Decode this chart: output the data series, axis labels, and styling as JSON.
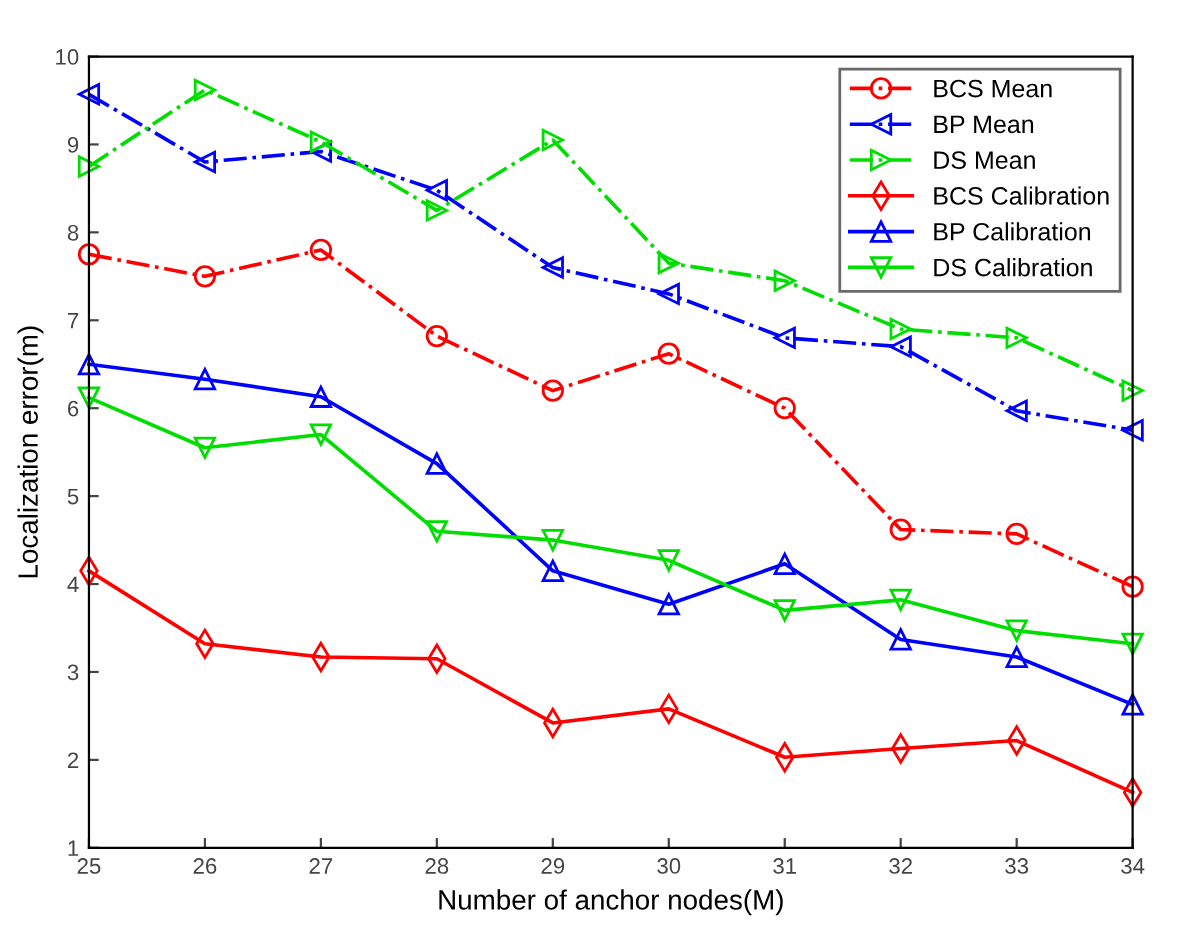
{
  "chart_data": {
    "type": "line",
    "xlabel": "Number of anchor nodes(M)",
    "ylabel": "Localization error(m)",
    "x": [
      25,
      26,
      27,
      28,
      29,
      30,
      31,
      32,
      33,
      34
    ],
    "xlim": [
      25,
      34
    ],
    "xticks": [
      25,
      26,
      27,
      28,
      29,
      30,
      31,
      32,
      33,
      34
    ],
    "ylim": [
      1,
      10
    ],
    "yticks": [
      1,
      2,
      3,
      4,
      5,
      6,
      7,
      8,
      9,
      10
    ],
    "grid": false,
    "legend": "top right",
    "series": [
      {
        "name": "BCS Mean",
        "color": "#ff0000",
        "marker": "circle",
        "line_style": "dashdot",
        "values": [
          7.75,
          7.5,
          7.8,
          6.82,
          6.2,
          6.62,
          6.0,
          4.62,
          4.57,
          3.97
        ]
      },
      {
        "name": "BP Mean",
        "color": "#0000ff",
        "marker": "triangle_left",
        "line_style": "dashdot",
        "values": [
          9.57,
          8.8,
          8.92,
          8.48,
          7.6,
          7.3,
          6.8,
          6.7,
          5.97,
          5.75
        ]
      },
      {
        "name": "DS Mean",
        "color": "#00dd00",
        "marker": "triangle_right",
        "line_style": "dashdot",
        "values": [
          8.75,
          9.62,
          9.03,
          8.25,
          9.05,
          7.65,
          7.45,
          6.9,
          6.8,
          6.2
        ]
      },
      {
        "name": "BCS Calibration",
        "color": "#ff0000",
        "marker": "diamond",
        "line_style": "solid",
        "values": [
          4.15,
          3.32,
          3.17,
          3.15,
          2.42,
          2.58,
          2.03,
          2.13,
          2.22,
          1.63
        ]
      },
      {
        "name": "BP Calibration",
        "color": "#0000ff",
        "marker": "triangle",
        "line_style": "solid",
        "values": [
          6.5,
          6.33,
          6.13,
          5.37,
          4.15,
          3.77,
          4.23,
          3.37,
          3.17,
          2.63
        ]
      },
      {
        "name": "DS Calibration",
        "color": "#00dd00",
        "marker": "triangle_down",
        "line_style": "solid",
        "values": [
          6.12,
          5.55,
          5.7,
          4.6,
          4.5,
          4.27,
          3.7,
          3.82,
          3.47,
          3.32
        ]
      }
    ]
  }
}
